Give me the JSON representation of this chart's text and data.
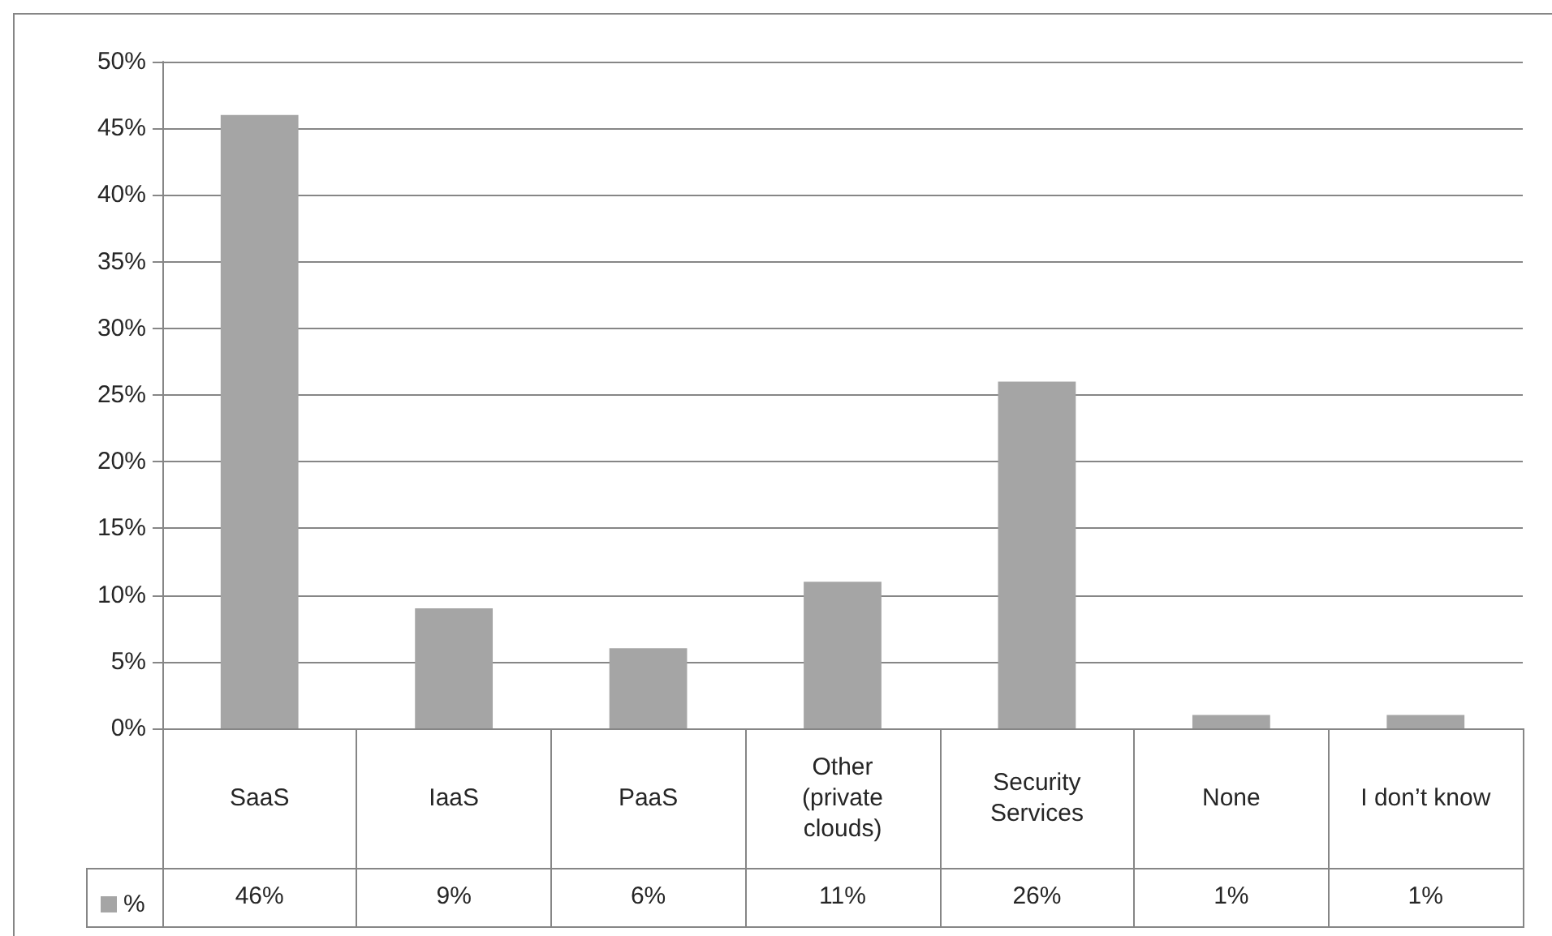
{
  "chart_data": {
    "type": "bar",
    "categories": [
      "SaaS",
      "IaaS",
      "PaaS",
      "Other (private clouds)",
      "Security Services",
      "None",
      "I don’t know"
    ],
    "series": [
      {
        "name": "%",
        "color": "#a5a5a5",
        "values": [
          46,
          9,
          6,
          11,
          26,
          1,
          1
        ],
        "value_labels": [
          "46%",
          "9%",
          "6%",
          "11%",
          "26%",
          "1%",
          "1%"
        ]
      }
    ],
    "ylim": [
      0,
      50
    ],
    "yticks": [
      {
        "value": 0,
        "label": "0%"
      },
      {
        "value": 5,
        "label": "5%"
      },
      {
        "value": 10,
        "label": "10%"
      },
      {
        "value": 15,
        "label": "15%"
      },
      {
        "value": 20,
        "label": "20%"
      },
      {
        "value": 25,
        "label": "25%"
      },
      {
        "value": 30,
        "label": "30%"
      },
      {
        "value": 35,
        "label": "35%"
      },
      {
        "value": 40,
        "label": "40%"
      },
      {
        "value": 45,
        "label": "45%"
      },
      {
        "value": 50,
        "label": "50%"
      }
    ],
    "grid": "y",
    "legend": "bottom left"
  }
}
